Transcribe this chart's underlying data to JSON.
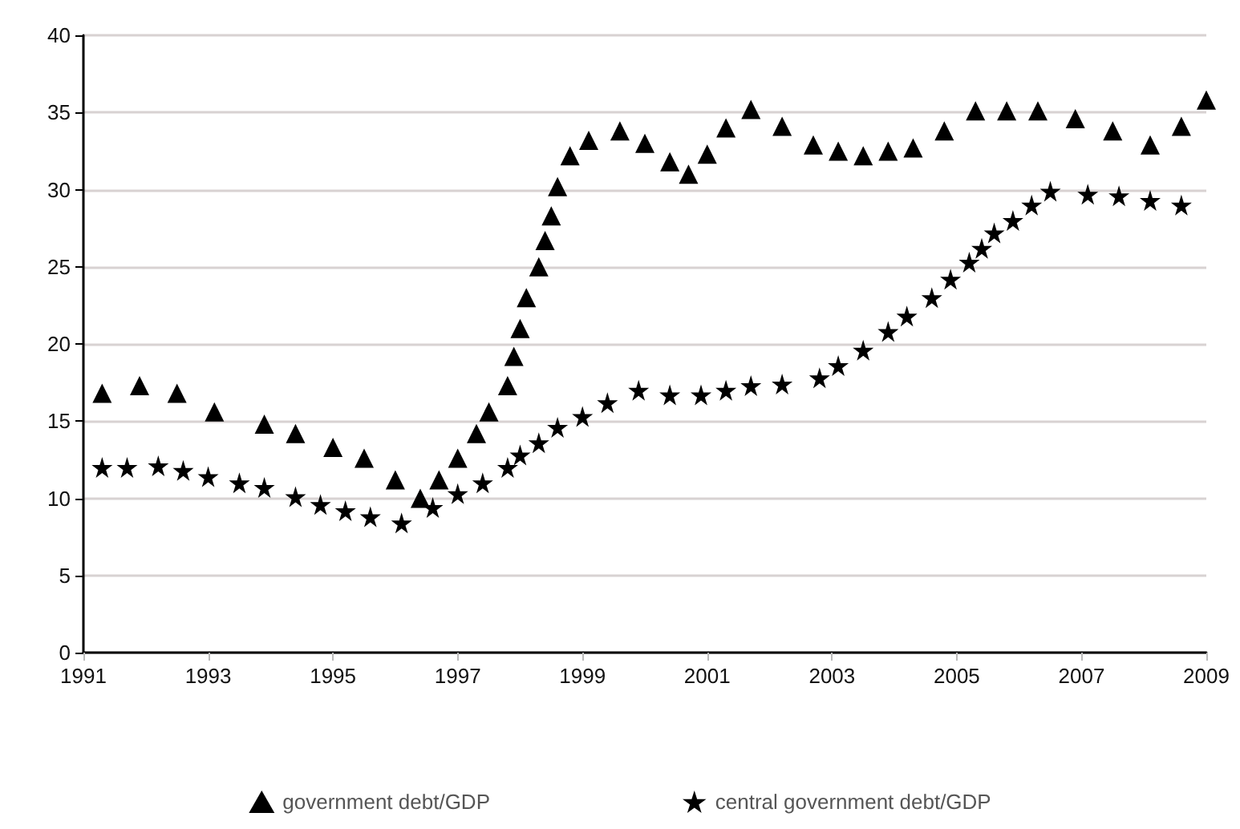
{
  "chart_data": {
    "type": "scatter",
    "xlim": [
      1991,
      2009
    ],
    "xticks": [
      1991,
      1993,
      1995,
      1997,
      1999,
      2001,
      2003,
      2005,
      2007,
      2009
    ],
    "ylim": [
      0,
      40
    ],
    "yticks": [
      0,
      5,
      10,
      15,
      20,
      25,
      30,
      35,
      40
    ],
    "grid": "y",
    "legend": "bottom",
    "series": [
      {
        "name": "government debt/GDP",
        "color": "#000000",
        "marker": "triangle",
        "x": [
          1991.3,
          1991.9,
          1992.5,
          1993.1,
          1993.9,
          1994.4,
          1995.0,
          1995.5,
          1996.0,
          1996.4,
          1996.7,
          1997.0,
          1997.3,
          1997.5,
          1997.8,
          1997.9,
          1998.0,
          1998.1,
          1998.3,
          1998.4,
          1998.5,
          1998.6,
          1998.8,
          1999.1,
          1999.6,
          2000.0,
          2000.4,
          2000.7,
          2001.0,
          2001.3,
          2001.7,
          2002.2,
          2002.7,
          2003.1,
          2003.5,
          2003.9,
          2004.3,
          2004.8,
          2005.3,
          2005.8,
          2006.3,
          2006.9,
          2007.5,
          2008.1,
          2008.6,
          2009.0
        ],
        "values": [
          16.8,
          17.3,
          16.8,
          15.6,
          14.8,
          14.2,
          13.3,
          12.6,
          11.2,
          10.0,
          11.2,
          12.6,
          14.2,
          15.6,
          17.3,
          19.2,
          21.0,
          23.0,
          25.0,
          26.7,
          28.3,
          30.2,
          32.2,
          33.2,
          33.8,
          33.0,
          31.8,
          31.0,
          32.3,
          34.0,
          35.2,
          34.1,
          32.9,
          32.5,
          32.2,
          32.5,
          32.7,
          33.8,
          35.1,
          35.1,
          35.1,
          34.6,
          33.8,
          32.9,
          34.1,
          35.8
        ]
      },
      {
        "name": "central government debt/GDP",
        "color": "#000000",
        "marker": "star",
        "x": [
          1991.3,
          1991.7,
          1992.2,
          1992.6,
          1993.0,
          1993.5,
          1993.9,
          1994.4,
          1994.8,
          1995.2,
          1995.6,
          1996.1,
          1996.6,
          1997.0,
          1997.4,
          1997.8,
          1998.0,
          1998.3,
          1998.6,
          1999.0,
          1999.4,
          1999.9,
          2000.4,
          2000.9,
          2001.3,
          2001.7,
          2002.2,
          2002.8,
          2003.1,
          2003.5,
          2003.9,
          2004.2,
          2004.6,
          2004.9,
          2005.2,
          2005.4,
          2005.6,
          2005.9,
          2006.2,
          2006.5,
          2007.1,
          2007.6,
          2008.1,
          2008.6
        ],
        "values": [
          12.0,
          12.0,
          12.1,
          11.8,
          11.4,
          11.0,
          10.7,
          10.1,
          9.6,
          9.2,
          8.8,
          8.4,
          9.4,
          10.3,
          11.0,
          12.0,
          12.8,
          13.6,
          14.6,
          15.3,
          16.2,
          17.0,
          16.7,
          16.7,
          17.0,
          17.3,
          17.4,
          17.8,
          18.6,
          19.6,
          20.8,
          21.8,
          23.0,
          24.2,
          25.3,
          26.2,
          27.2,
          28.0,
          29.0,
          29.9,
          29.7,
          29.6,
          29.3,
          29.0
        ]
      }
    ]
  }
}
